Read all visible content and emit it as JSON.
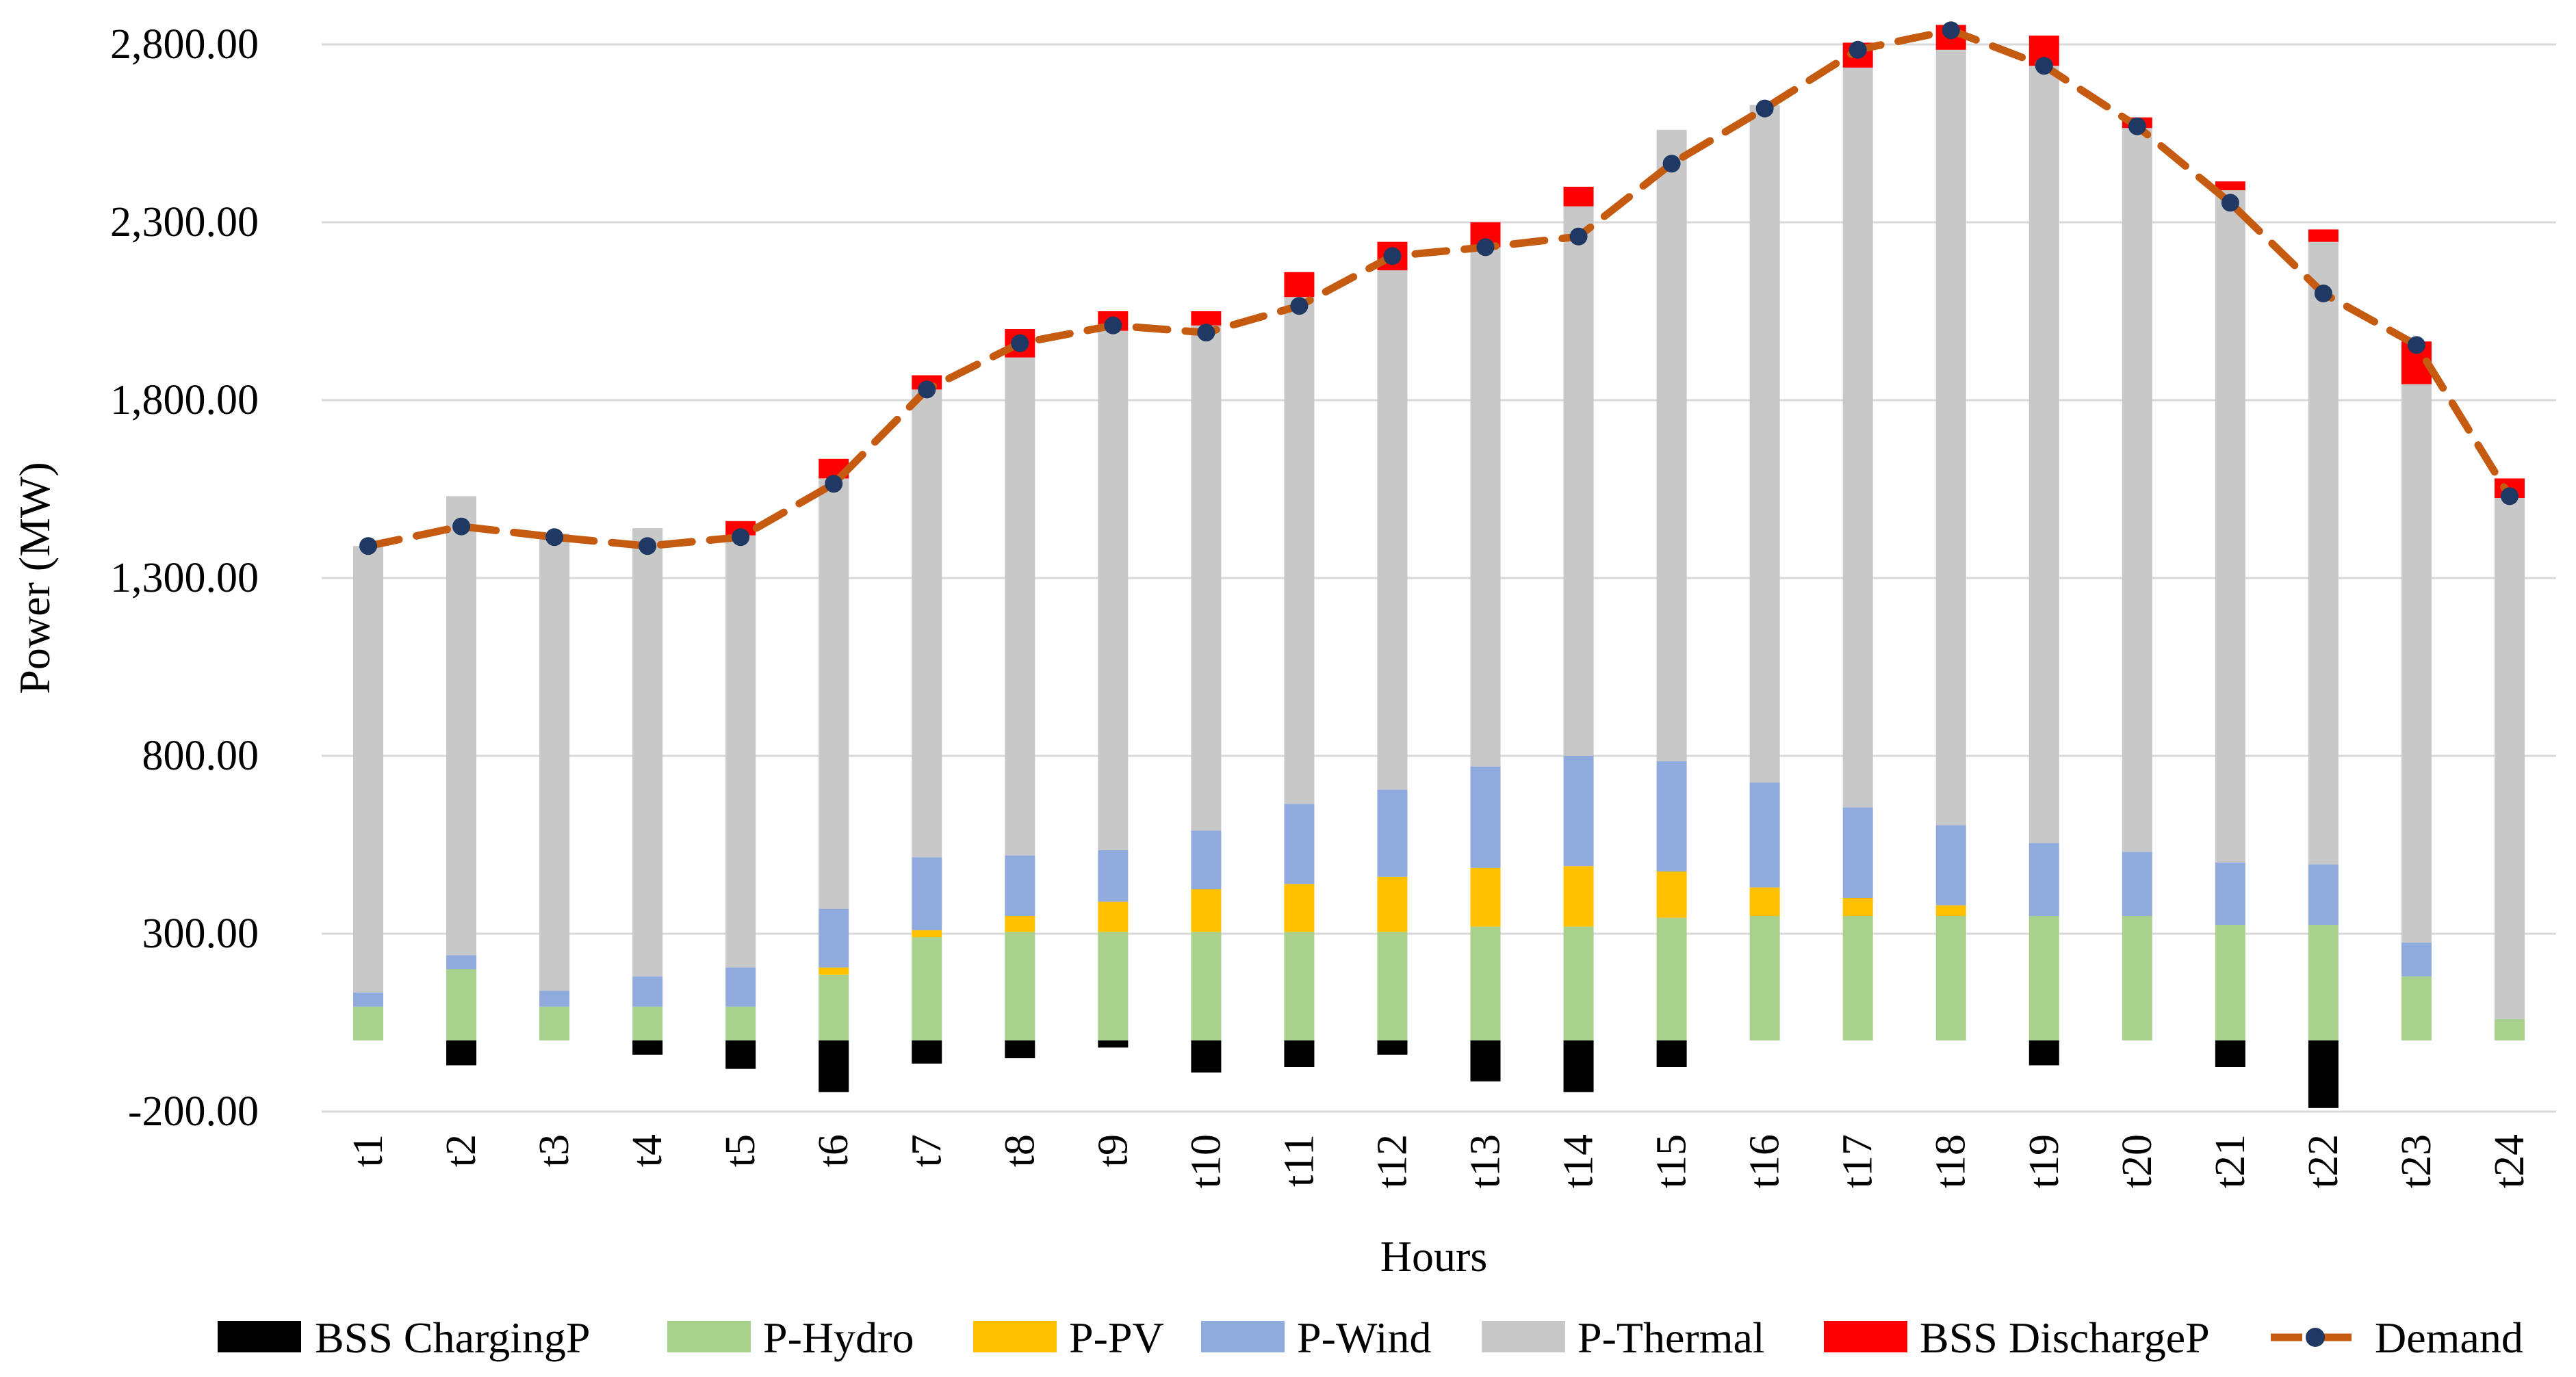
{
  "chart_data": {
    "type": "bar",
    "stacked": true,
    "xlabel": "Hours",
    "ylabel": "Power (MW)",
    "ylim": [
      -200,
      2800
    ],
    "yticks": [
      -200,
      300,
      800,
      1300,
      1800,
      2300,
      2800
    ],
    "ytick_labels": [
      "-200.00",
      "300.00",
      "800.00",
      "1,300.00",
      "1,800.00",
      "2,300.00",
      "2,800.00"
    ],
    "categories": [
      "t1",
      "t2",
      "t3",
      "t4",
      "t5",
      "t6",
      "t7",
      "t8",
      "t9",
      "t10",
      "t11",
      "t12",
      "t13",
      "t14",
      "t15",
      "t16",
      "t17",
      "t18",
      "t19",
      "t20",
      "t21",
      "t22",
      "t23",
      "t24"
    ],
    "series": [
      {
        "name": "BSS ChargingP",
        "color": "#000000",
        "values": [
          0,
          -70,
          0,
          -40,
          -80,
          -145,
          -65,
          -50,
          -20,
          -90,
          -75,
          -40,
          -115,
          -145,
          -75,
          0,
          0,
          0,
          -70,
          0,
          -75,
          -190,
          0,
          0
        ]
      },
      {
        "name": "P-Hydro",
        "color": "#A9D18E",
        "values": [
          95,
          200,
          95,
          95,
          95,
          185,
          290,
          305,
          305,
          305,
          305,
          305,
          320,
          320,
          345,
          350,
          350,
          350,
          350,
          350,
          325,
          325,
          180,
          60
        ]
      },
      {
        "name": "P-PV",
        "color": "#FFC000",
        "values": [
          0,
          0,
          0,
          0,
          0,
          20,
          20,
          45,
          85,
          120,
          135,
          155,
          165,
          170,
          130,
          80,
          50,
          30,
          0,
          0,
          0,
          0,
          0,
          0
        ]
      },
      {
        "name": "P-Wind",
        "color": "#8FAADC",
        "values": [
          40,
          40,
          45,
          85,
          110,
          165,
          205,
          170,
          145,
          165,
          225,
          245,
          285,
          310,
          310,
          295,
          255,
          225,
          205,
          180,
          175,
          170,
          95,
          0
        ]
      },
      {
        "name": "P-Thermal",
        "color": "#C8C8C8",
        "values": [
          1255,
          1290,
          1285,
          1260,
          1215,
          1210,
          1315,
          1400,
          1460,
          1420,
          1425,
          1460,
          1460,
          1545,
          1775,
          1905,
          2080,
          2180,
          2185,
          2035,
          1890,
          1750,
          1570,
          1465
        ]
      },
      {
        "name": "BSS DischargeP",
        "color": "#FF0000",
        "values": [
          0,
          0,
          0,
          0,
          40,
          55,
          40,
          80,
          55,
          40,
          70,
          80,
          70,
          55,
          0,
          0,
          70,
          70,
          85,
          30,
          25,
          35,
          120,
          55
        ]
      }
    ],
    "line": {
      "name": "Demand",
      "line_color": "#C55A11",
      "marker_color": "#1F3864",
      "values": [
        1390,
        1445,
        1415,
        1390,
        1415,
        1565,
        1830,
        1960,
        2010,
        1990,
        2065,
        2205,
        2230,
        2260,
        2465,
        2620,
        2785,
        2840,
        2740,
        2570,
        2355,
        2100,
        1955,
        1530
      ]
    },
    "legend": [
      "BSS ChargingP",
      "P-Hydro",
      "P-PV",
      "P-Wind",
      "P-Thermal",
      "BSS DischargeP",
      "Demand"
    ]
  }
}
